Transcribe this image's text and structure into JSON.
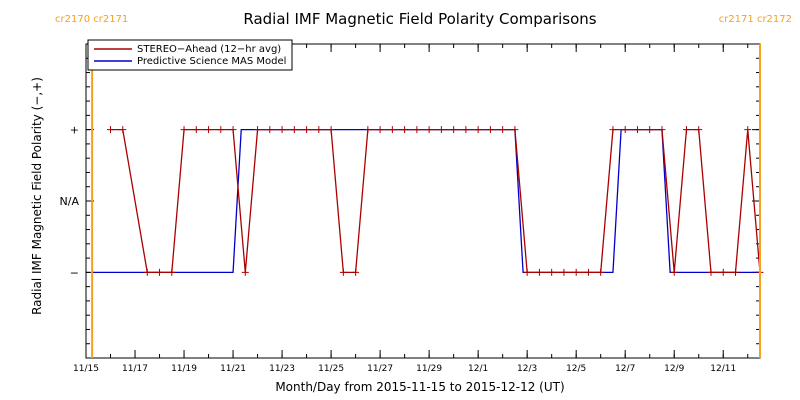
{
  "chart_data": {
    "type": "line",
    "title": "Radial IMF Magnetic Field Polarity Comparisons",
    "xlabel": "Month/Day from 2015-11-15 to 2015-12-12 (UT)",
    "ylabel": "Radial IMF Magnetic Field Polarity (−,+)",
    "xlim": [
      "2015-11-15T00:00",
      "2015-12-12T12:00"
    ],
    "x_tick_labels": [
      "11/15",
      "11/17",
      "11/19",
      "11/21",
      "11/23",
      "11/25",
      "11/27",
      "11/29",
      "12/1",
      "12/3",
      "12/5",
      "12/7",
      "12/9",
      "12/11"
    ],
    "x_tick_dates": [
      "2015-11-15",
      "2015-11-17",
      "2015-11-19",
      "2015-11-21",
      "2015-11-23",
      "2015-11-25",
      "2015-11-27",
      "2015-11-29",
      "2015-12-01",
      "2015-12-03",
      "2015-12-05",
      "2015-12-07",
      "2015-12-09",
      "2015-12-11"
    ],
    "y_tick_labels": [
      "+",
      "N/A",
      "−"
    ],
    "y_tick_values": [
      1,
      0,
      -1
    ],
    "ylim": [
      -2.2,
      2.2
    ],
    "legend_position": "top-left",
    "carrington_markers": [
      {
        "date": "2015-11-15T06:00",
        "label": "cr2170 cr2171"
      },
      {
        "date": "2015-12-12T12:00",
        "label": "cr2171 cr2172"
      }
    ],
    "series": [
      {
        "name": "STEREO−Ahead (12−hr avg)",
        "color": "#aa0000",
        "markers": true,
        "points": [
          [
            "2015-11-16T00:00",
            1
          ],
          [
            "2015-11-16T12:00",
            1
          ],
          [
            "2015-11-17T12:00",
            -1
          ],
          [
            "2015-11-18T00:00",
            -1
          ],
          [
            "2015-11-18T12:00",
            -1
          ],
          [
            "2015-11-19T00:00",
            1
          ],
          [
            "2015-11-19T12:00",
            1
          ],
          [
            "2015-11-20T00:00",
            1
          ],
          [
            "2015-11-20T12:00",
            1
          ],
          [
            "2015-11-21T00:00",
            1
          ],
          [
            "2015-11-21T12:00",
            -1
          ],
          [
            "2015-11-22T00:00",
            1
          ],
          [
            "2015-11-22T12:00",
            1
          ],
          [
            "2015-11-23T00:00",
            1
          ],
          [
            "2015-11-23T12:00",
            1
          ],
          [
            "2015-11-24T00:00",
            1
          ],
          [
            "2015-11-24T12:00",
            1
          ],
          [
            "2015-11-25T00:00",
            1
          ],
          [
            "2015-11-25T12:00",
            -1
          ],
          [
            "2015-11-26T00:00",
            -1
          ],
          [
            "2015-11-26T12:00",
            1
          ],
          [
            "2015-11-27T00:00",
            1
          ],
          [
            "2015-11-27T12:00",
            1
          ],
          [
            "2015-11-28T00:00",
            1
          ],
          [
            "2015-11-28T12:00",
            1
          ],
          [
            "2015-11-29T00:00",
            1
          ],
          [
            "2015-11-29T12:00",
            1
          ],
          [
            "2015-11-30T00:00",
            1
          ],
          [
            "2015-11-30T12:00",
            1
          ],
          [
            "2015-12-01T00:00",
            1
          ],
          [
            "2015-12-01T12:00",
            1
          ],
          [
            "2015-12-02T00:00",
            1
          ],
          [
            "2015-12-02T12:00",
            1
          ],
          [
            "2015-12-03T00:00",
            -1
          ],
          [
            "2015-12-03T12:00",
            -1
          ],
          [
            "2015-12-04T00:00",
            -1
          ],
          [
            "2015-12-04T12:00",
            -1
          ],
          [
            "2015-12-05T00:00",
            -1
          ],
          [
            "2015-12-05T12:00",
            -1
          ],
          [
            "2015-12-06T00:00",
            -1
          ],
          [
            "2015-12-06T12:00",
            1
          ],
          [
            "2015-12-07T00:00",
            1
          ],
          [
            "2015-12-07T12:00",
            1
          ],
          [
            "2015-12-08T00:00",
            1
          ],
          [
            "2015-12-08T12:00",
            1
          ],
          [
            "2015-12-09T00:00",
            -1
          ],
          [
            "2015-12-09T12:00",
            1
          ],
          [
            "2015-12-10T00:00",
            1
          ],
          [
            "2015-12-10T12:00",
            -1
          ],
          [
            "2015-12-11T00:00",
            -1
          ],
          [
            "2015-12-11T12:00",
            -1
          ],
          [
            "2015-12-12T00:00",
            1
          ],
          [
            "2015-12-12T12:00",
            -1
          ]
        ]
      },
      {
        "name": "Predictive Science MAS Model",
        "color": "#0000cc",
        "markers": false,
        "points": [
          [
            "2015-11-15T06:00",
            -1
          ],
          [
            "2015-11-21T00:00",
            -1
          ],
          [
            "2015-11-21T08:00",
            1
          ],
          [
            "2015-12-02T12:00",
            1
          ],
          [
            "2015-12-02T20:00",
            -1
          ],
          [
            "2015-12-06T12:00",
            -1
          ],
          [
            "2015-12-06T20:00",
            1
          ],
          [
            "2015-12-08T12:00",
            1
          ],
          [
            "2015-12-08T20:00",
            -1
          ],
          [
            "2015-12-12T12:00",
            -1
          ]
        ]
      }
    ]
  }
}
